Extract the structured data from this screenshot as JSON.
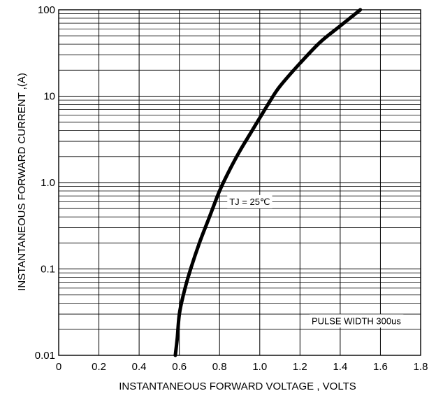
{
  "chart_data": {
    "type": "line",
    "title": "",
    "xlabel": "INSTANTANEOUS FORWARD VOLTAGE , VOLTS",
    "ylabel": "INSTANTANEOUS  FORWARD CURRENT ,(A)",
    "xlim": [
      0,
      1.8
    ],
    "ylim": [
      0.01,
      100
    ],
    "yscale": "log",
    "grid": true,
    "x_ticks": [
      "0",
      "0.2",
      "0.4",
      "0.6",
      "0.8",
      "1.0",
      "1.2",
      "1.4",
      "1.6",
      "1.8"
    ],
    "x_tick_values": [
      0,
      0.2,
      0.4,
      0.6,
      0.8,
      1.0,
      1.2,
      1.4,
      1.6,
      1.8
    ],
    "y_ticks": [
      "0.01",
      "0.1",
      "1.0",
      "10",
      "100"
    ],
    "y_tick_values": [
      0.01,
      0.1,
      1,
      10,
      100
    ],
    "series": [
      {
        "x": [
          0.58,
          0.59,
          0.6,
          0.62,
          0.65,
          0.7,
          0.75,
          0.8,
          0.85,
          0.9,
          0.95,
          1.0,
          1.05,
          1.1,
          1.2,
          1.3,
          1.4,
          1.5
        ],
        "y": [
          0.01,
          0.016,
          0.03,
          0.05,
          0.09,
          0.2,
          0.4,
          0.8,
          1.4,
          2.3,
          3.6,
          5.6,
          8.7,
          13,
          24,
          42,
          65,
          100
        ]
      }
    ],
    "annotations": [
      {
        "text": "TJ = 25℃",
        "x": 0.95,
        "y": 0.6
      },
      {
        "text": "PULSE WIDTH 300us",
        "x": 1.48,
        "y": 0.025
      }
    ]
  }
}
